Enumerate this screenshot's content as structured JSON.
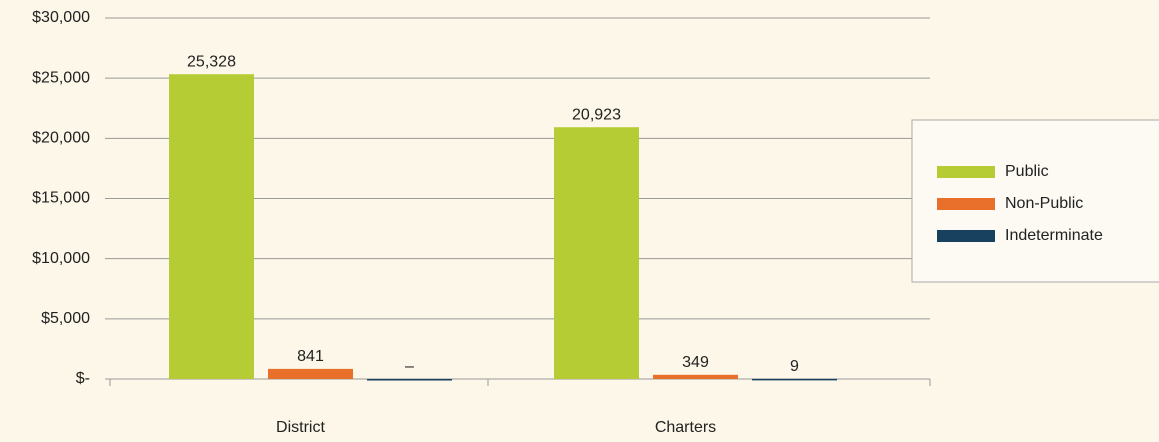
{
  "chart_data": {
    "type": "bar",
    "categories": [
      "District",
      "Charters"
    ],
    "series": [
      {
        "name": "Public",
        "color": "#b5cc34",
        "values": [
          25328,
          20923
        ],
        "value_labels": [
          "25,328",
          "20,923"
        ]
      },
      {
        "name": "Non-Public",
        "color": "#e8702a",
        "values": [
          841,
          349
        ],
        "value_labels": [
          "841",
          "349"
        ]
      },
      {
        "name": "Indeterminate",
        "color": "#17415e",
        "values": [
          0,
          9
        ],
        "value_labels": [
          "–",
          "9"
        ]
      }
    ],
    "ylim": [
      0,
      30000
    ],
    "yticks": [
      {
        "value": 0,
        "label": "$-"
      },
      {
        "value": 5000,
        "label": "$5,000"
      },
      {
        "value": 10000,
        "label": "$10,000"
      },
      {
        "value": 15000,
        "label": "$15,000"
      },
      {
        "value": 20000,
        "label": "$20,000"
      },
      {
        "value": 25000,
        "label": "$25,000"
      },
      {
        "value": 30000,
        "label": "$30,000"
      }
    ],
    "grid": true,
    "legend": "right"
  }
}
